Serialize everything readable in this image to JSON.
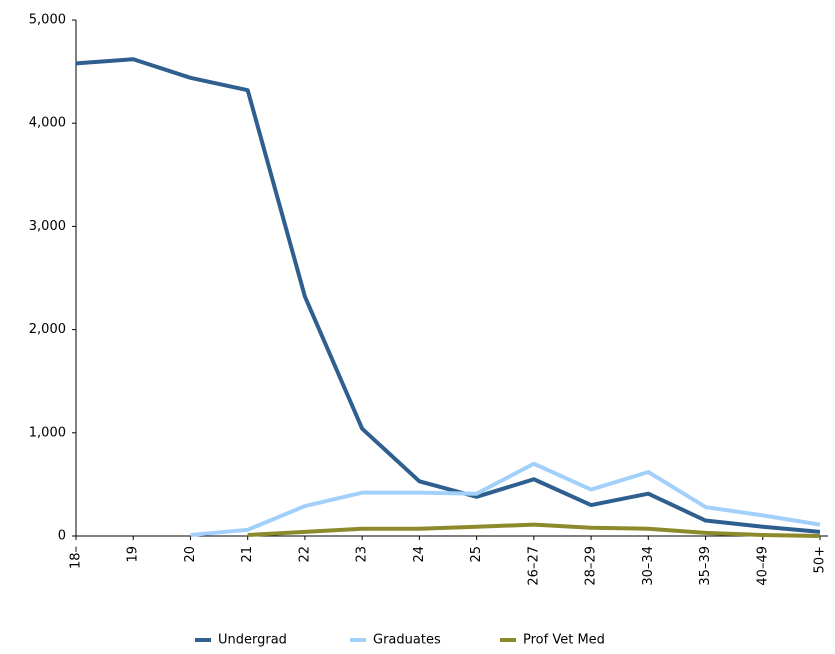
{
  "chart_data": {
    "type": "line",
    "categories": [
      "18–",
      "19",
      "20",
      "21",
      "22",
      "23",
      "24",
      "25",
      "26–27",
      "28–29",
      "30–34",
      "35–39",
      "40–49",
      "50+"
    ],
    "series": [
      {
        "name": "Undergrad",
        "color": "#2f5f8f",
        "values": [
          4580,
          4620,
          4440,
          4320,
          2320,
          1040,
          530,
          380,
          550,
          300,
          410,
          150,
          90,
          40
        ]
      },
      {
        "name": "Graduates",
        "color": "#a3d0fb",
        "values": [
          null,
          null,
          10,
          60,
          290,
          420,
          420,
          410,
          700,
          450,
          620,
          280,
          200,
          110
        ]
      },
      {
        "name": "Prof Vet Med",
        "color": "#8c8a2c",
        "values": [
          null,
          null,
          null,
          10,
          40,
          70,
          70,
          90,
          110,
          80,
          70,
          30,
          10,
          0
        ]
      }
    ],
    "ylim": [
      0,
      5000
    ],
    "yticks": [
      0,
      {
        "value": 1000,
        "label": "1,000"
      },
      {
        "value": 2000,
        "label": "2,000"
      },
      {
        "value": 3000,
        "label": "3,000"
      },
      {
        "value": 4000,
        "label": "4,000"
      },
      {
        "value": 5000,
        "label": "5,000"
      }
    ],
    "legend": "bottom"
  }
}
